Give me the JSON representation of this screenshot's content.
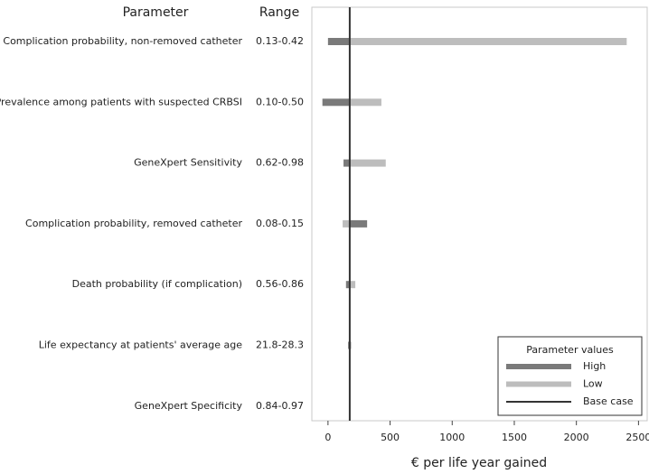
{
  "chart_data": {
    "type": "tornado",
    "parameter_header": "Parameter",
    "range_header": "Range",
    "categories": [
      "Complication probability, non-removed catheter",
      "Prevalence among patients with suspected CRBSI",
      "GeneXpert Sensitivity",
      "Complication probability, removed catheter",
      "Death probability (if complication)",
      "Life expectancy at patients' average age",
      "GeneXpert Specificity"
    ],
    "ranges": [
      "0.13-0.42",
      "0.10-0.50",
      "0.62-0.98",
      "0.08-0.15",
      "0.56-0.86",
      "21.8-28.3",
      "0.84-0.97"
    ],
    "series": [
      {
        "name": "High",
        "color": "#7a7a7a",
        "values": [
          0,
          -45,
          125,
          315,
          145,
          162,
          172
        ]
      },
      {
        "name": "Low",
        "color": "#bdbdbd",
        "values": [
          2405,
          430,
          465,
          118,
          220,
          188,
          178
        ]
      }
    ],
    "base_case": {
      "name": "Base case",
      "value": 175,
      "color": "#333333"
    },
    "xlabel": "€ per life year gained",
    "xlim": [
      -130,
      2570
    ],
    "xticks": [
      0,
      500,
      1000,
      1500,
      2000,
      2500
    ],
    "legend": {
      "title": "Parameter values",
      "position": "lower right"
    }
  }
}
